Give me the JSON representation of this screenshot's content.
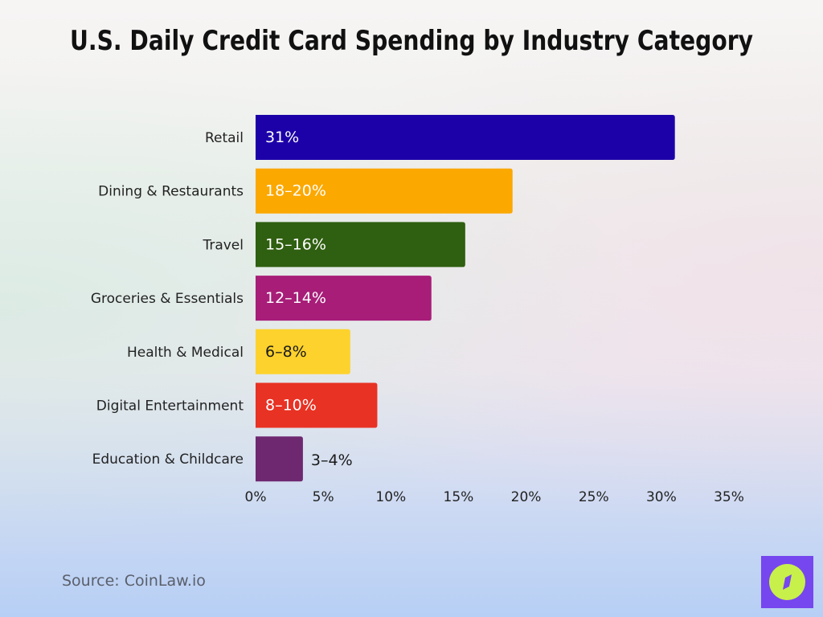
{
  "chart_data": {
    "type": "bar",
    "orientation": "horizontal",
    "title": "U.S. Daily Credit Card Spending by Industry Category",
    "categories": [
      "Retail",
      "Dining & Restaurants",
      "Travel",
      "Groceries & Essentials",
      "Health & Medical",
      "Digital Entertainment",
      "Education & Childcare"
    ],
    "values": [
      31,
      19,
      15.5,
      13,
      7,
      9,
      3.5
    ],
    "data_labels": [
      "31%",
      "18–20%",
      "15–16%",
      "12–14%",
      "6–8%",
      "8–10%",
      "3–4%"
    ],
    "colors": [
      "#1c00a8",
      "#fba800",
      "#2f5f10",
      "#a71d78",
      "#fdd22c",
      "#e83224",
      "#6e2870"
    ],
    "label_colors": [
      "#ffffff",
      "#ffffff",
      "#ffffff",
      "#ffffff",
      "#1a1a1a",
      "#ffffff",
      "#1a1a1a"
    ],
    "xlim": [
      0,
      35
    ],
    "x_ticks": [
      "0%",
      "5%",
      "10%",
      "15%",
      "20%",
      "25%",
      "30%",
      "35%"
    ],
    "grid": false,
    "xlabel": "",
    "ylabel": ""
  },
  "source": "Source: CoinLaw.io",
  "logo": {
    "icon": "compass-icon",
    "color": "#7646ef",
    "accent": "#c8f04a"
  }
}
